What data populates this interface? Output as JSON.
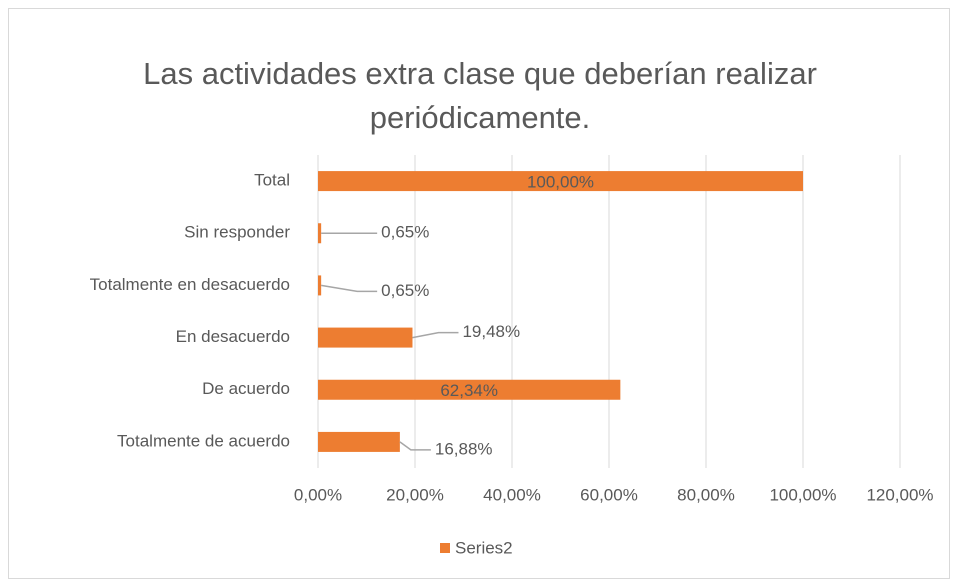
{
  "chart_data": {
    "type": "bar",
    "orientation": "horizontal",
    "title": "Las actividades extra clase que deberían realizar periódicamente.",
    "categories": [
      "Total",
      "Sin responder",
      "Totalmente en desacuerdo",
      "En desacuerdo",
      "De acuerdo",
      "Totalmente de acuerdo"
    ],
    "series": [
      {
        "name": "Series2",
        "color": "#ED7D31",
        "values": [
          100,
          0.65,
          0.65,
          19.48,
          62.34,
          16.88
        ],
        "value_labels": [
          "100,00%",
          "0,65%",
          "0,65%",
          "19,48%",
          "62,34%",
          "16,88%"
        ]
      }
    ],
    "xlim": [
      0,
      120
    ],
    "xticks": [
      {
        "value": 0,
        "label": "0,00%"
      },
      {
        "value": 20,
        "label": "20,00%"
      },
      {
        "value": 40,
        "label": "40,00%"
      },
      {
        "value": 60,
        "label": "60,00%"
      },
      {
        "value": 80,
        "label": "80,00%"
      },
      {
        "value": 100,
        "label": "100,00%"
      },
      {
        "value": 120,
        "label": "120,00%"
      }
    ],
    "grid": true,
    "legend": "bottom"
  }
}
